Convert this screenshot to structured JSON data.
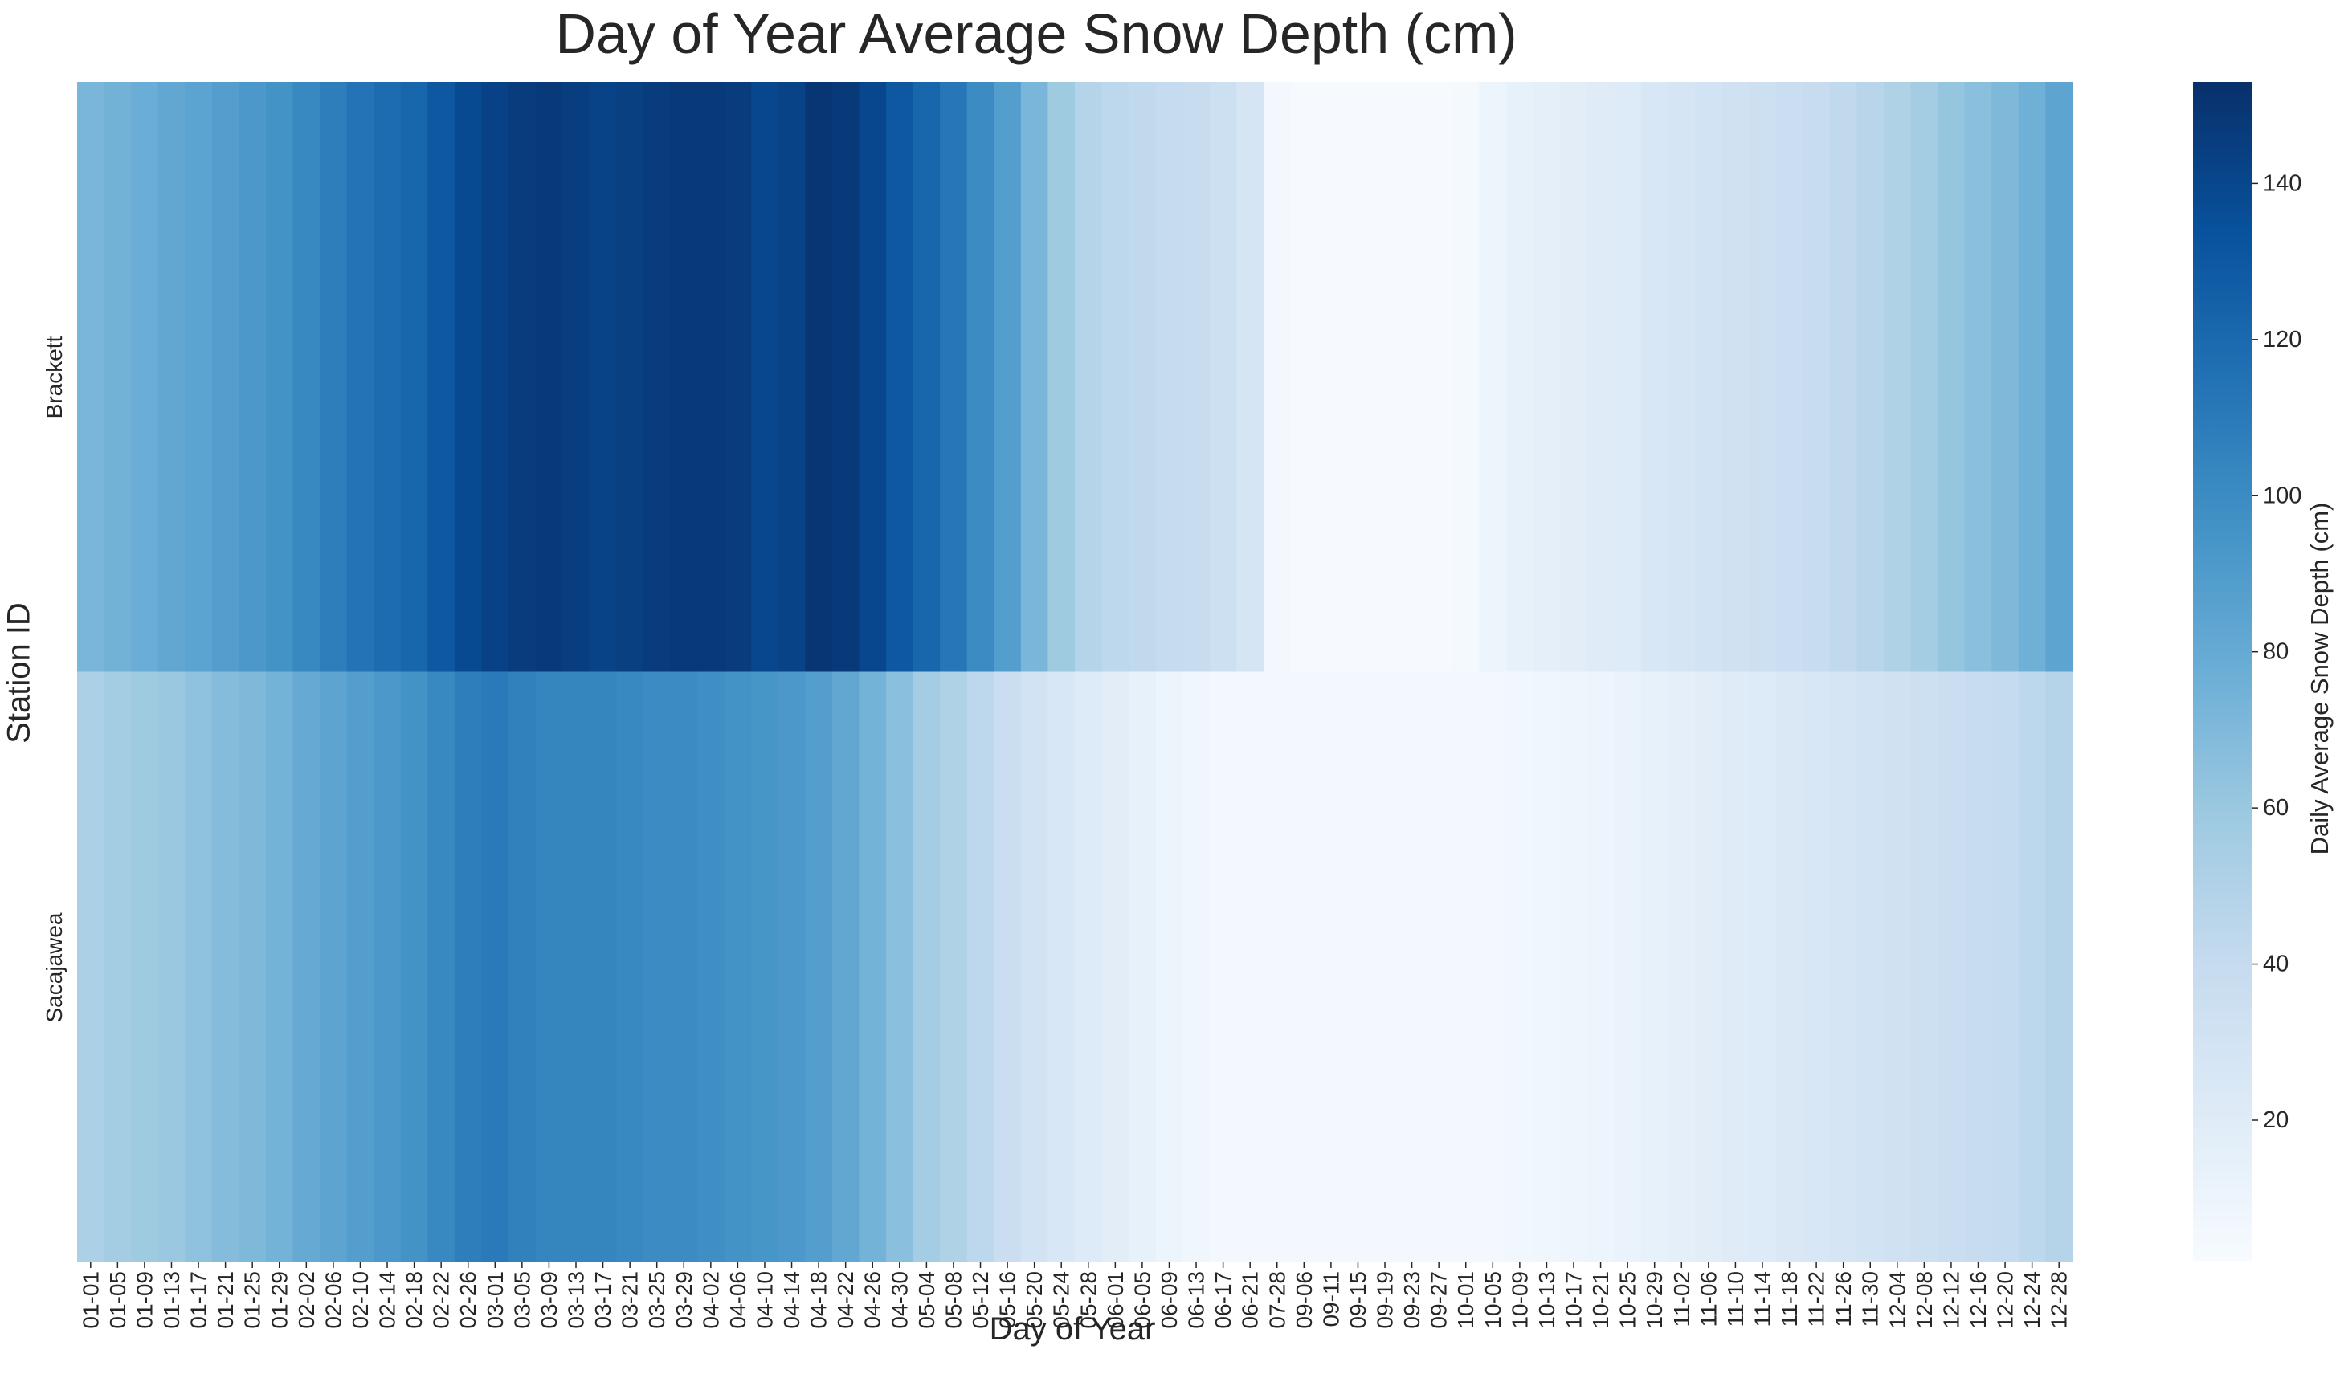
{
  "chart_data": {
    "type": "heatmap",
    "title": "Day of Year Average Snow Depth (cm)",
    "xlabel": "Day of Year",
    "ylabel": "Station ID",
    "rows": [
      "Brackett",
      "Sacajawea"
    ],
    "x_tick_labels": [
      "01-01",
      "01-05",
      "01-09",
      "01-13",
      "01-17",
      "01-21",
      "01-25",
      "01-29",
      "02-02",
      "02-06",
      "02-10",
      "02-14",
      "02-18",
      "02-22",
      "02-26",
      "03-01",
      "03-05",
      "03-09",
      "03-13",
      "03-17",
      "03-21",
      "03-25",
      "03-29",
      "04-02",
      "04-06",
      "04-10",
      "04-14",
      "04-18",
      "04-22",
      "04-26",
      "04-30",
      "05-04",
      "05-08",
      "05-12",
      "05-16",
      "05-20",
      "05-24",
      "05-28",
      "06-01",
      "06-05",
      "06-09",
      "06-13",
      "06-17",
      "06-21",
      "07-28",
      "09-06",
      "09-11",
      "09-15",
      "09-19",
      "09-23",
      "09-27",
      "10-01",
      "10-05",
      "10-09",
      "10-13",
      "10-17",
      "10-21",
      "10-25",
      "10-29",
      "11-02",
      "11-06",
      "11-10",
      "11-14",
      "11-18",
      "11-22",
      "11-26",
      "11-30",
      "12-04",
      "12-08",
      "12-12",
      "12-16",
      "12-20",
      "12-24",
      "12-28"
    ],
    "values": {
      "Brackett": [
        72,
        75,
        78,
        82,
        85,
        88,
        92,
        96,
        102,
        108,
        114,
        118,
        122,
        130,
        138,
        143,
        146,
        148,
        145,
        142,
        144,
        146,
        148,
        148,
        146,
        140,
        142,
        150,
        148,
        140,
        130,
        122,
        112,
        100,
        88,
        72,
        58,
        48,
        44,
        42,
        40,
        38,
        34,
        28,
        6,
        3,
        3,
        3,
        3,
        3,
        3,
        4,
        10,
        14,
        16,
        18,
        20,
        22,
        26,
        28,
        30,
        32,
        34,
        36,
        38,
        42,
        46,
        50,
        56,
        62,
        66,
        70,
        76,
        84
      ],
      "Sacajawea": [
        52,
        56,
        58,
        60,
        64,
        68,
        70,
        74,
        80,
        84,
        88,
        92,
        96,
        102,
        108,
        110,
        106,
        104,
        104,
        104,
        102,
        100,
        100,
        98,
        96,
        94,
        92,
        88,
        82,
        74,
        66,
        56,
        50,
        44,
        36,
        30,
        26,
        22,
        18,
        14,
        10,
        8,
        6,
        6,
        6,
        6,
        6,
        6,
        6,
        6,
        6,
        5,
        6,
        7,
        8,
        9,
        10,
        12,
        14,
        16,
        18,
        20,
        22,
        24,
        26,
        28,
        30,
        32,
        34,
        36,
        38,
        40,
        44,
        48
      ]
    },
    "colorbar": {
      "label": "Daily Average Snow Depth (cm)",
      "range": [
        2,
        153
      ],
      "ticks": [
        20,
        40,
        60,
        80,
        100,
        120,
        140
      ],
      "colormap": "Blues"
    },
    "grid": false
  }
}
